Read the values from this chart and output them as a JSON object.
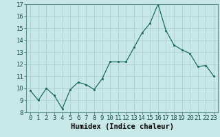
{
  "x": [
    0,
    1,
    2,
    3,
    4,
    5,
    6,
    7,
    8,
    9,
    10,
    11,
    12,
    13,
    14,
    15,
    16,
    17,
    18,
    19,
    20,
    21,
    22,
    23
  ],
  "y": [
    9.8,
    9.0,
    10.0,
    9.4,
    8.3,
    9.9,
    10.5,
    10.3,
    9.9,
    10.8,
    12.2,
    12.2,
    12.2,
    13.4,
    14.6,
    15.4,
    17.0,
    14.8,
    13.6,
    13.2,
    12.9,
    11.8,
    11.9,
    11.0
  ],
  "xlabel": "Humidex (Indice chaleur)",
  "ylim": [
    8,
    17
  ],
  "xlim": [
    -0.5,
    23.5
  ],
  "yticks": [
    8,
    9,
    10,
    11,
    12,
    13,
    14,
    15,
    16,
    17
  ],
  "xticks": [
    0,
    1,
    2,
    3,
    4,
    5,
    6,
    7,
    8,
    9,
    10,
    11,
    12,
    13,
    14,
    15,
    16,
    17,
    18,
    19,
    20,
    21,
    22,
    23
  ],
  "line_color": "#1a6b5a",
  "marker_color": "#1a6b5a",
  "bg_color": "#c8e8e8",
  "grid_color": "#aacccc",
  "tick_label_fontsize": 6.5,
  "xlabel_fontsize": 7.5
}
